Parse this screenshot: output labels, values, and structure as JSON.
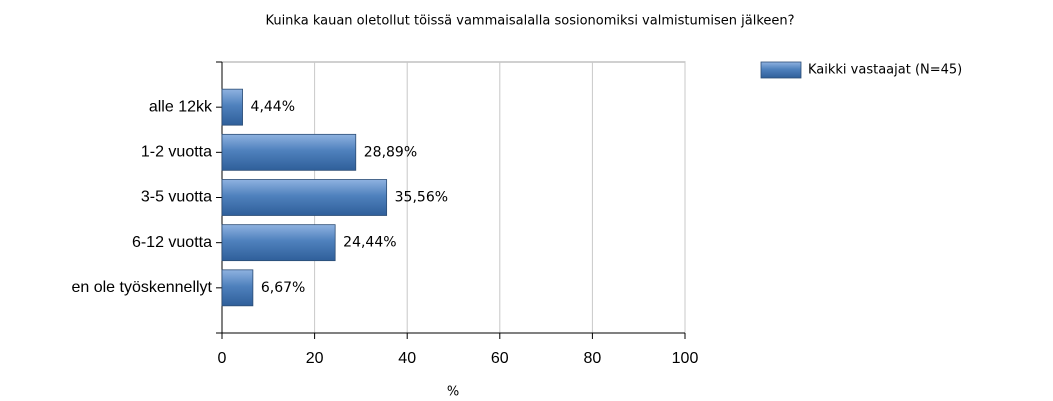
{
  "chart_data": {
    "type": "bar",
    "orientation": "horizontal",
    "title": "Kuinka kauan oletollut töissä vammaisalalla sosionomiksi valmistumisen jälkeen?",
    "categories": [
      "alle 12kk",
      "1-2 vuotta",
      "3-5 vuotta",
      "6-12 vuotta",
      "en ole työskennellyt"
    ],
    "series": [
      {
        "name": "Kaikki vastaajat (N=45)",
        "color": "#4a7ebb",
        "values": [
          4.44,
          28.89,
          35.56,
          24.44,
          6.67
        ],
        "value_labels": [
          "4,44%",
          "28,89%",
          "35,56%",
          "24,44%",
          "6,67%"
        ]
      }
    ],
    "x_label": "%",
    "xlim": [
      0,
      100
    ],
    "xticks": [
      0,
      20,
      40,
      60,
      80,
      100
    ],
    "grid": true,
    "legend": "top-right"
  }
}
